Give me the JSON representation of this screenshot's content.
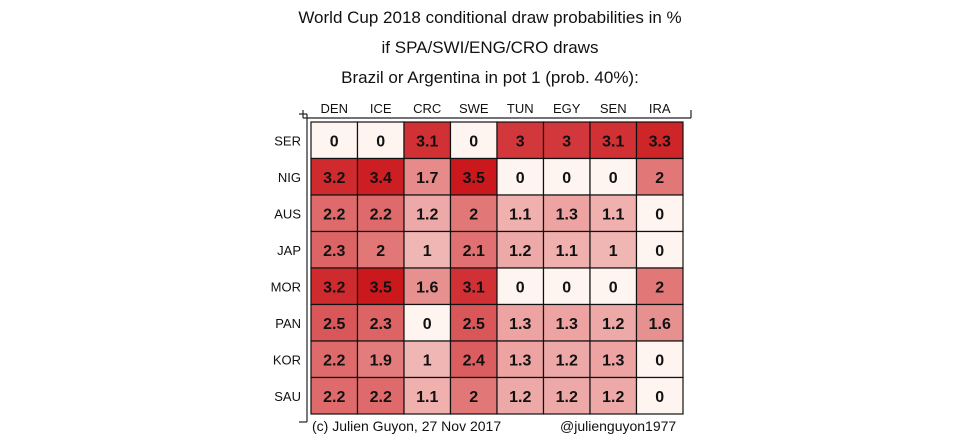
{
  "chart_data": {
    "type": "heatmap",
    "title": "World Cup 2018 conditional draw probabilities in %",
    "subtitle": "if SPA/SWI/ENG/CRO draws",
    "subtitle2": "Brazil or Argentina in pot 1 (prob. 40%):",
    "columns": [
      "DEN",
      "ICE",
      "CRC",
      "SWE",
      "TUN",
      "EGY",
      "SEN",
      "IRA"
    ],
    "rows": [
      "SER",
      "NIG",
      "AUS",
      "JAP",
      "MOR",
      "PAN",
      "KOR",
      "SAU"
    ],
    "values": [
      [
        "0",
        "0",
        "3.1",
        "0",
        "3",
        "3",
        "3.1",
        "3.3"
      ],
      [
        "3.2",
        "3.4",
        "1.7",
        "3.5",
        "0",
        "0",
        "0",
        "2"
      ],
      [
        "2.2",
        "2.2",
        "1.2",
        "2",
        "1.1",
        "1.3",
        "1.1",
        "0"
      ],
      [
        "2.3",
        "2",
        "1",
        "2.1",
        "1.2",
        "1.1",
        "1",
        "0"
      ],
      [
        "3.2",
        "3.5",
        "1.6",
        "3.1",
        "0",
        "0",
        "0",
        "2"
      ],
      [
        "2.5",
        "2.3",
        "0",
        "2.5",
        "1.3",
        "1.3",
        "1.2",
        "1.6"
      ],
      [
        "2.2",
        "1.9",
        "1",
        "2.4",
        "1.3",
        "1.2",
        "1.3",
        "0"
      ],
      [
        "2.2",
        "2.2",
        "1.1",
        "2",
        "1.2",
        "1.2",
        "1.2",
        "0"
      ]
    ],
    "color_low": "#fff5f0",
    "color_high": "#cb181d",
    "grid": true
  },
  "footer": {
    "credit": "(c) Julien Guyon, 27 Nov 2017",
    "handle": "@julienguyon1977"
  }
}
